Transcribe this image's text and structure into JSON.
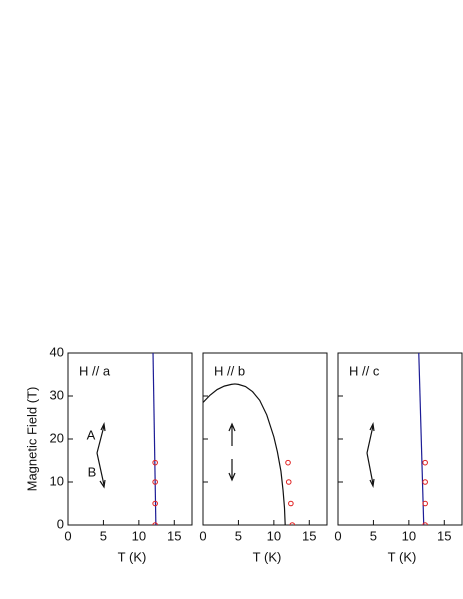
{
  "chart_data": [
    {
      "type": "line",
      "title": "H // a",
      "ylabel": "Magnetic Field  (T)",
      "xlabel": "T  (K)",
      "annotations": [
        "A",
        "B"
      ],
      "xlim": [
        0,
        17.5
      ],
      "xticks": [
        0,
        5,
        10,
        15
      ],
      "ylim": [
        0,
        40
      ],
      "yticks": [
        0,
        10,
        20,
        30,
        40
      ],
      "show_ytick_labels": true,
      "series": [
        {
          "type": "line",
          "color": "#1c1c96",
          "x": [
            12.0,
            12.4
          ],
          "values": [
            40,
            0
          ]
        },
        {
          "type": "scatter",
          "color": "#e02020",
          "x": [
            12.3,
            12.3,
            12.3,
            12.3
          ],
          "values": [
            0,
            5,
            10,
            14.5
          ]
        }
      ]
    },
    {
      "type": "line",
      "title": "H // b",
      "xlabel": "T  (K)",
      "xlim": [
        0,
        17.5
      ],
      "xticks": [
        0,
        5,
        10,
        15
      ],
      "ylim": [
        0,
        40
      ],
      "yticks": [
        0,
        10,
        20,
        30,
        40
      ],
      "show_ytick_labels": false,
      "series": [
        {
          "type": "line",
          "color": "#111111",
          "x": [
            0,
            1,
            2,
            3,
            4,
            4.5,
            5,
            6,
            7,
            8,
            9,
            10,
            10.5,
            11,
            11.3,
            11.5,
            11.6
          ],
          "values": [
            28.5,
            30.2,
            31.5,
            32.3,
            32.7,
            32.8,
            32.7,
            32.2,
            31,
            29,
            25.6,
            20.5,
            17,
            12.5,
            8,
            4,
            0
          ]
        },
        {
          "type": "scatter",
          "color": "#e02020",
          "x": [
            12.6,
            12.4,
            12.1,
            12.0
          ],
          "values": [
            0,
            5,
            10,
            14.5
          ]
        }
      ]
    },
    {
      "type": "line",
      "title": "H // c",
      "xlabel": "T  (K)",
      "xlim": [
        0,
        17.5
      ],
      "xticks": [
        0,
        5,
        10,
        15
      ],
      "ylim": [
        0,
        40
      ],
      "yticks": [
        0,
        10,
        20,
        30,
        40
      ],
      "show_ytick_labels": false,
      "series": [
        {
          "type": "line",
          "color": "#1c1c96",
          "x": [
            11.4,
            12.1
          ],
          "values": [
            40,
            0
          ]
        },
        {
          "type": "scatter",
          "color": "#e02020",
          "x": [
            12.3,
            12.3,
            12.3,
            12.3
          ],
          "values": [
            0,
            5,
            10,
            14.5
          ]
        }
      ]
    }
  ]
}
